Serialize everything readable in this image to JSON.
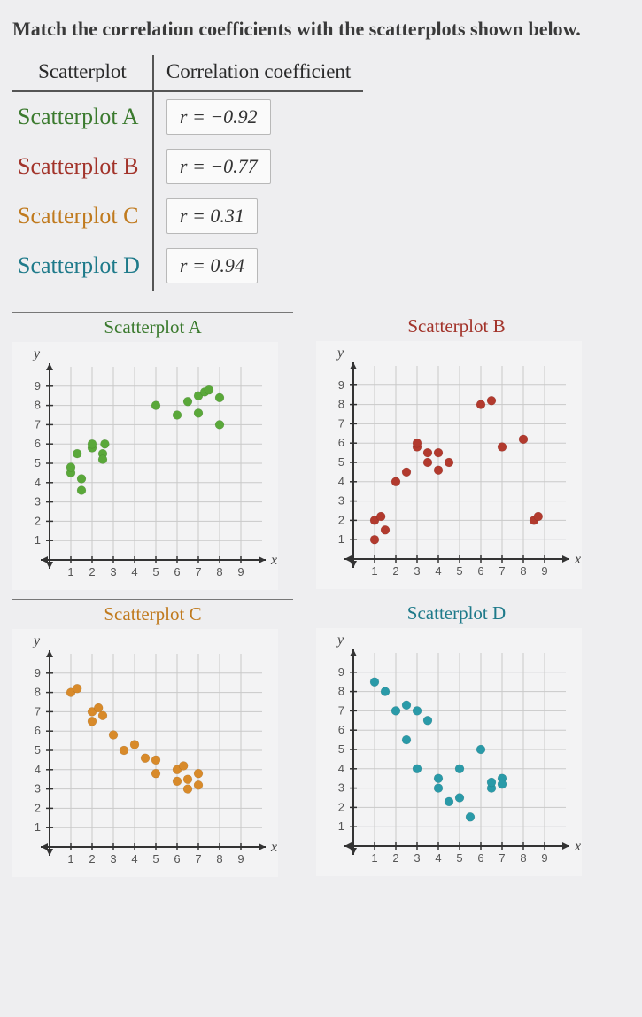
{
  "prompt": "Match the correlation coefficients with the scatterplots shown below.",
  "table": {
    "headers": {
      "left": "Scatterplot",
      "right": "Correlation coefficient"
    },
    "rows": [
      {
        "name": "Scatterplot A",
        "color": "#3b7a2e",
        "coeff": "r = −0.92"
      },
      {
        "name": "Scatterplot B",
        "color": "#a2332a",
        "coeff": "r = −0.77"
      },
      {
        "name": "Scatterplot C",
        "color": "#c07a1e",
        "coeff": "r = 0.31"
      },
      {
        "name": "Scatterplot D",
        "color": "#1e7a8a",
        "coeff": "r = 0.94"
      }
    ]
  },
  "chart_style": {
    "xmin": 0,
    "xmax": 10,
    "ymin": 0,
    "ymax": 10,
    "xticks": [
      1,
      2,
      3,
      4,
      5,
      6,
      7,
      8,
      9
    ],
    "yticks": [
      1,
      2,
      3,
      4,
      5,
      6,
      7,
      8,
      9
    ],
    "grid_color": "#c9c9c9",
    "axis_color": "#333333",
    "tick_fontsize": 13,
    "point_radius": 5,
    "xlabel": "x",
    "ylabel": "y"
  },
  "plots": {
    "A": {
      "title": "Scatterplot A",
      "title_color": "#3b7a2e",
      "point_color": "#5aa83a",
      "points": [
        [
          1,
          4.5
        ],
        [
          1,
          4.8
        ],
        [
          1.3,
          5.5
        ],
        [
          1.5,
          3.6
        ],
        [
          1.5,
          4.2
        ],
        [
          2,
          5.8
        ],
        [
          2,
          6
        ],
        [
          2.5,
          5.5
        ],
        [
          2.6,
          6
        ],
        [
          2.5,
          5.2
        ],
        [
          5,
          8
        ],
        [
          6,
          7.5
        ],
        [
          6.5,
          8.2
        ],
        [
          7,
          8.5
        ],
        [
          7.3,
          8.7
        ],
        [
          7,
          7.6
        ],
        [
          7.5,
          8.8
        ],
        [
          8,
          8.4
        ],
        [
          8,
          7
        ]
      ]
    },
    "B": {
      "title": "Scatterplot B",
      "title_color": "#a2332a",
      "point_color": "#b23a2e",
      "points": [
        [
          1,
          1
        ],
        [
          1,
          2
        ],
        [
          1.3,
          2.2
        ],
        [
          1.5,
          1.5
        ],
        [
          2,
          4
        ],
        [
          2.5,
          4.5
        ],
        [
          3,
          5.8
        ],
        [
          3,
          6
        ],
        [
          3.5,
          5
        ],
        [
          3.5,
          5.5
        ],
        [
          4,
          5.5
        ],
        [
          4,
          4.6
        ],
        [
          4.5,
          5
        ],
        [
          6,
          8
        ],
        [
          6.5,
          8.2
        ],
        [
          7,
          5.8
        ],
        [
          8,
          6.2
        ],
        [
          8.5,
          2
        ],
        [
          8.7,
          2.2
        ]
      ]
    },
    "C": {
      "title": "Scatterplot C",
      "title_color": "#c07a1e",
      "point_color": "#d88a2a",
      "points": [
        [
          1,
          8
        ],
        [
          1.3,
          8.2
        ],
        [
          2,
          7
        ],
        [
          2.3,
          7.2
        ],
        [
          2,
          6.5
        ],
        [
          2.5,
          6.8
        ],
        [
          3,
          5.8
        ],
        [
          3.5,
          5
        ],
        [
          4,
          5.3
        ],
        [
          4.5,
          4.6
        ],
        [
          5,
          4.5
        ],
        [
          5,
          3.8
        ],
        [
          6,
          4
        ],
        [
          6,
          3.4
        ],
        [
          6.3,
          4.2
        ],
        [
          6.5,
          3
        ],
        [
          6.5,
          3.5
        ],
        [
          7,
          3.8
        ],
        [
          7,
          3.2
        ]
      ]
    },
    "D": {
      "title": "Scatterplot D",
      "title_color": "#1e7a8a",
      "point_color": "#2a9aa8",
      "points": [
        [
          1,
          8.5
        ],
        [
          1.5,
          8
        ],
        [
          2,
          7
        ],
        [
          2.5,
          7.3
        ],
        [
          2.5,
          5.5
        ],
        [
          3,
          7
        ],
        [
          3,
          4
        ],
        [
          3.5,
          6.5
        ],
        [
          4,
          3
        ],
        [
          4,
          3.5
        ],
        [
          4.5,
          2.3
        ],
        [
          5,
          2.5
        ],
        [
          5,
          4
        ],
        [
          5.5,
          1.5
        ],
        [
          6,
          5
        ],
        [
          6.5,
          3
        ],
        [
          6.5,
          3.3
        ],
        [
          7,
          3.5
        ],
        [
          7,
          3.2
        ]
      ]
    }
  }
}
